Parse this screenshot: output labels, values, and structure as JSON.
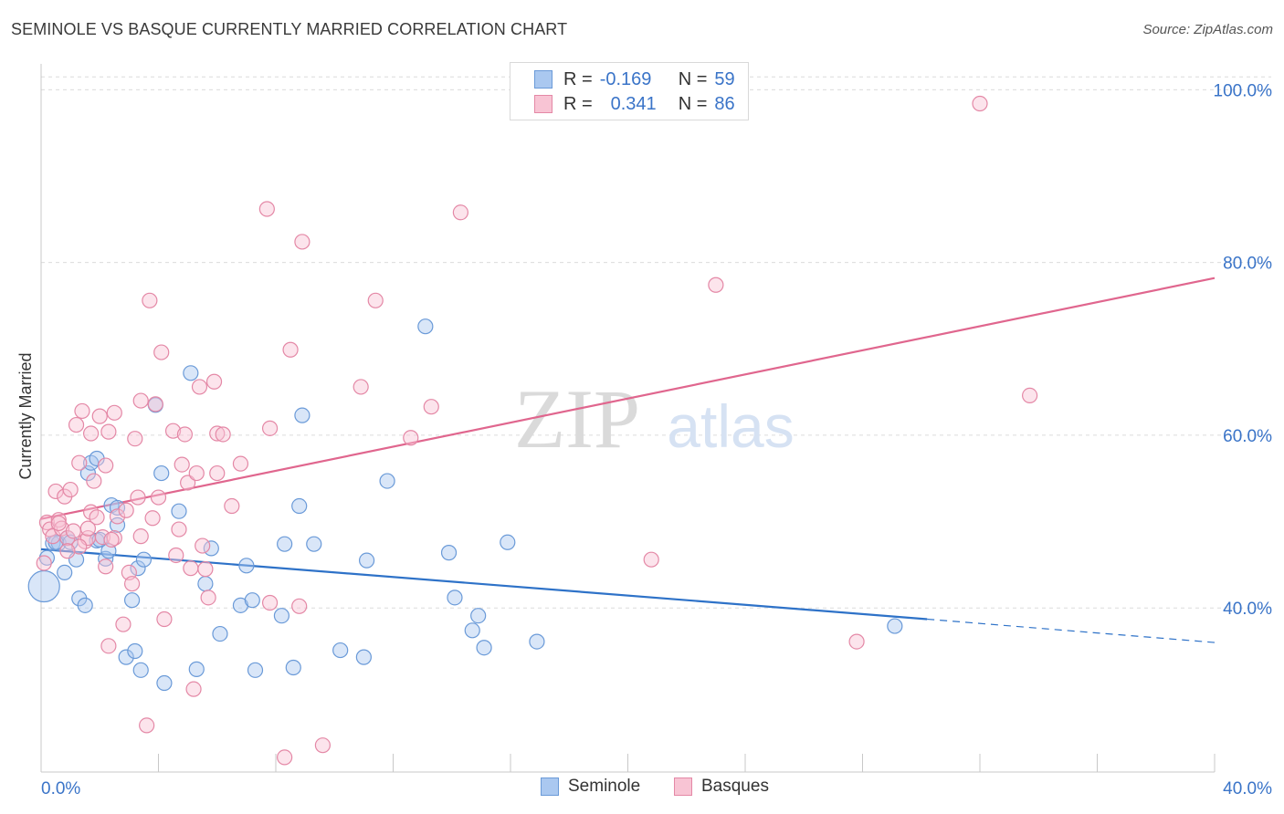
{
  "header": {
    "title": "SEMINOLE VS BASQUE CURRENTLY MARRIED CORRELATION CHART",
    "source": "Source: ZipAtlas.com"
  },
  "watermark": {
    "zip": "ZIP",
    "atlas": "atlas"
  },
  "legend": {
    "rows": [
      {
        "r_label": "R =",
        "r_value": "-0.169",
        "n_label": "N =",
        "n_value": "59",
        "color": "#aac8f0",
        "edge": "#6a9ad8"
      },
      {
        "r_label": "R =",
        "r_value": "0.341",
        "n_label": "N =",
        "n_value": "86",
        "color": "#f8c4d4",
        "edge": "#e488a6"
      }
    ]
  },
  "bottom_legend": [
    {
      "label": "Seminole",
      "color": "#aac8f0",
      "edge": "#6a9ad8"
    },
    {
      "label": "Basques",
      "color": "#f8c4d4",
      "edge": "#e488a6"
    }
  ],
  "chart_data": {
    "type": "scatter",
    "title": "SEMINOLE VS BASQUE CURRENTLY MARRIED CORRELATION CHART",
    "ylabel": "Currently Married",
    "xlim": [
      0,
      40
    ],
    "ylim": [
      21,
      103
    ],
    "x_tick_labels": [
      "0.0%",
      "40.0%"
    ],
    "y_ticks": [
      40,
      60,
      80,
      100
    ],
    "y_tick_labels": [
      "40.0%",
      "60.0%",
      "80.0%",
      "100.0%"
    ],
    "grid": true,
    "legend_position": "top-center",
    "series": [
      {
        "name": "Seminole",
        "color": "#6a9ad8",
        "fill": "#aac8f0",
        "line_color": "#2e72c8",
        "trend": {
          "x0": 0,
          "y0": 46.8,
          "x1": 30.2,
          "y1": 38.7,
          "dash_to_x": 40,
          "dash_to_y": 36.0
        },
        "points": [
          [
            0.1,
            42.5
          ],
          [
            0.2,
            45.8
          ],
          [
            0.4,
            47.5
          ],
          [
            0.6,
            47.5
          ],
          [
            0.8,
            44.1
          ],
          [
            0.9,
            48.1
          ],
          [
            1.2,
            45.6
          ],
          [
            1.3,
            41.1
          ],
          [
            1.5,
            40.3
          ],
          [
            1.6,
            55.6
          ],
          [
            1.7,
            56.8
          ],
          [
            1.9,
            47.8
          ],
          [
            1.9,
            57.3
          ],
          [
            2.2,
            45.7
          ],
          [
            2.3,
            46.6
          ],
          [
            2.4,
            51.9
          ],
          [
            2.6,
            51.6
          ],
          [
            2.6,
            49.6
          ],
          [
            2.9,
            34.3
          ],
          [
            3.1,
            40.9
          ],
          [
            3.2,
            35.0
          ],
          [
            3.3,
            44.6
          ],
          [
            3.4,
            32.8
          ],
          [
            3.5,
            45.6
          ],
          [
            3.9,
            63.5
          ],
          [
            4.1,
            55.6
          ],
          [
            4.2,
            31.3
          ],
          [
            4.7,
            51.2
          ],
          [
            5.1,
            67.2
          ],
          [
            5.3,
            32.9
          ],
          [
            5.6,
            42.8
          ],
          [
            5.8,
            46.9
          ],
          [
            6.1,
            37.0
          ],
          [
            6.8,
            40.3
          ],
          [
            7.0,
            44.9
          ],
          [
            7.2,
            40.9
          ],
          [
            7.3,
            32.8
          ],
          [
            8.2,
            39.1
          ],
          [
            8.3,
            47.4
          ],
          [
            8.6,
            33.1
          ],
          [
            8.8,
            51.8
          ],
          [
            8.9,
            62.3
          ],
          [
            9.3,
            47.4
          ],
          [
            10.2,
            35.1
          ],
          [
            11.0,
            34.3
          ],
          [
            11.1,
            45.5
          ],
          [
            11.8,
            54.7
          ],
          [
            13.1,
            72.6
          ],
          [
            13.9,
            46.4
          ],
          [
            14.1,
            41.2
          ],
          [
            14.7,
            37.4
          ],
          [
            14.9,
            39.1
          ],
          [
            15.1,
            35.4
          ],
          [
            15.9,
            47.6
          ],
          [
            16.9,
            36.1
          ],
          [
            29.1,
            37.9
          ],
          [
            2.0,
            47.9
          ],
          [
            0.5,
            47.6
          ],
          [
            1.0,
            47.6
          ]
        ]
      },
      {
        "name": "Basques",
        "color": "#e488a6",
        "fill": "#f8c4d4",
        "line_color": "#e0668e",
        "trend": {
          "x0": 0,
          "y0": 50.3,
          "x1": 40,
          "y1": 78.2
        },
        "points": [
          [
            0.1,
            45.2
          ],
          [
            0.2,
            49.9
          ],
          [
            0.3,
            49.1
          ],
          [
            0.4,
            48.3
          ],
          [
            0.5,
            53.5
          ],
          [
            0.6,
            50.2
          ],
          [
            0.7,
            49.2
          ],
          [
            0.8,
            52.9
          ],
          [
            0.9,
            48.1
          ],
          [
            1.0,
            53.7
          ],
          [
            1.1,
            48.9
          ],
          [
            1.2,
            61.2
          ],
          [
            1.3,
            56.8
          ],
          [
            1.4,
            62.8
          ],
          [
            1.5,
            47.7
          ],
          [
            1.6,
            48.1
          ],
          [
            1.7,
            60.2
          ],
          [
            1.7,
            51.1
          ],
          [
            1.8,
            54.7
          ],
          [
            1.9,
            50.5
          ],
          [
            2.0,
            62.2
          ],
          [
            2.1,
            48.2
          ],
          [
            2.2,
            56.5
          ],
          [
            2.2,
            44.8
          ],
          [
            2.3,
            60.4
          ],
          [
            2.3,
            35.6
          ],
          [
            2.5,
            62.6
          ],
          [
            2.5,
            48.1
          ],
          [
            2.6,
            50.6
          ],
          [
            2.8,
            38.1
          ],
          [
            2.9,
            51.3
          ],
          [
            3.0,
            44.1
          ],
          [
            3.1,
            42.8
          ],
          [
            3.2,
            59.6
          ],
          [
            3.3,
            52.8
          ],
          [
            3.4,
            64.0
          ],
          [
            3.4,
            48.3
          ],
          [
            3.6,
            26.4
          ],
          [
            3.7,
            75.6
          ],
          [
            3.9,
            63.6
          ],
          [
            4.0,
            52.8
          ],
          [
            4.1,
            69.6
          ],
          [
            4.2,
            38.7
          ],
          [
            4.5,
            60.5
          ],
          [
            4.6,
            46.1
          ],
          [
            4.7,
            49.1
          ],
          [
            4.8,
            56.6
          ],
          [
            4.9,
            60.1
          ],
          [
            5.0,
            54.5
          ],
          [
            5.1,
            44.6
          ],
          [
            5.2,
            30.6
          ],
          [
            5.3,
            55.6
          ],
          [
            5.4,
            65.6
          ],
          [
            5.5,
            47.2
          ],
          [
            5.6,
            44.5
          ],
          [
            5.7,
            41.2
          ],
          [
            5.9,
            66.2
          ],
          [
            6.0,
            60.2
          ],
          [
            6.0,
            55.6
          ],
          [
            6.2,
            60.1
          ],
          [
            6.5,
            51.8
          ],
          [
            6.8,
            56.7
          ],
          [
            7.7,
            86.2
          ],
          [
            7.8,
            60.8
          ],
          [
            7.8,
            40.6
          ],
          [
            8.3,
            22.7
          ],
          [
            8.5,
            69.9
          ],
          [
            8.8,
            40.2
          ],
          [
            8.9,
            82.4
          ],
          [
            9.6,
            24.1
          ],
          [
            10.9,
            65.6
          ],
          [
            11.4,
            75.6
          ],
          [
            12.6,
            59.7
          ],
          [
            13.3,
            63.3
          ],
          [
            14.3,
            85.8
          ],
          [
            20.8,
            45.6
          ],
          [
            23.0,
            77.4
          ],
          [
            27.8,
            36.1
          ],
          [
            32.0,
            98.4
          ],
          [
            33.7,
            64.6
          ],
          [
            0.6,
            49.8
          ],
          [
            1.3,
            47.1
          ],
          [
            2.4,
            47.9
          ],
          [
            0.9,
            46.6
          ],
          [
            1.6,
            49.2
          ],
          [
            3.8,
            50.4
          ]
        ]
      }
    ]
  }
}
